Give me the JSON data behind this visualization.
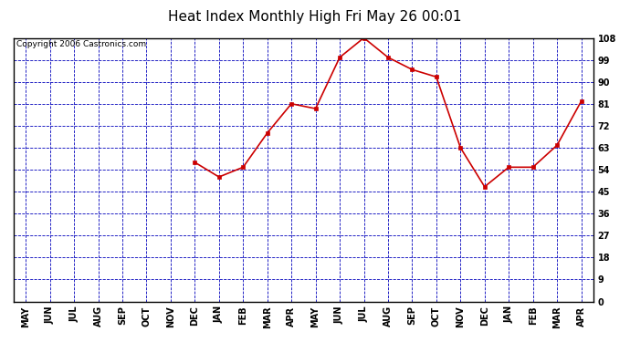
{
  "title": "Heat Index Monthly High Fri May 26 00:01",
  "copyright": "Copyright 2006 Castronics.com",
  "months": [
    "MAY",
    "JUN",
    "JUL",
    "AUG",
    "SEP",
    "OCT",
    "NOV",
    "DEC",
    "JAN",
    "FEB",
    "MAR",
    "APR",
    "MAY",
    "JUN",
    "JUL",
    "AUG",
    "SEP",
    "OCT",
    "NOV",
    "DEC",
    "JAN",
    "FEB",
    "MAR",
    "APR"
  ],
  "values": [
    null,
    null,
    null,
    null,
    null,
    null,
    null,
    57,
    51,
    55,
    69,
    81,
    79,
    100,
    108,
    100,
    95,
    92,
    63,
    47,
    55,
    55,
    64,
    82
  ],
  "y_ticks": [
    0.0,
    9.0,
    18.0,
    27.0,
    36.0,
    45.0,
    54.0,
    63.0,
    72.0,
    81.0,
    90.0,
    99.0,
    108.0
  ],
  "ylim": [
    0,
    108
  ],
  "line_color": "#cc0000",
  "marker_color": "#cc0000",
  "fig_bg_color": "#ffffff",
  "plot_bg_color": "#ffffff",
  "border_color": "#000000",
  "grid_color": "#0000bb",
  "title_color": "#000000",
  "title_fontsize": 11,
  "copyright_fontsize": 6.5,
  "ytick_color": "#000000",
  "xtick_color": "#000000",
  "tick_fontsize": 7,
  "ytick_fontweight": "bold",
  "xtick_fontweight": "bold"
}
